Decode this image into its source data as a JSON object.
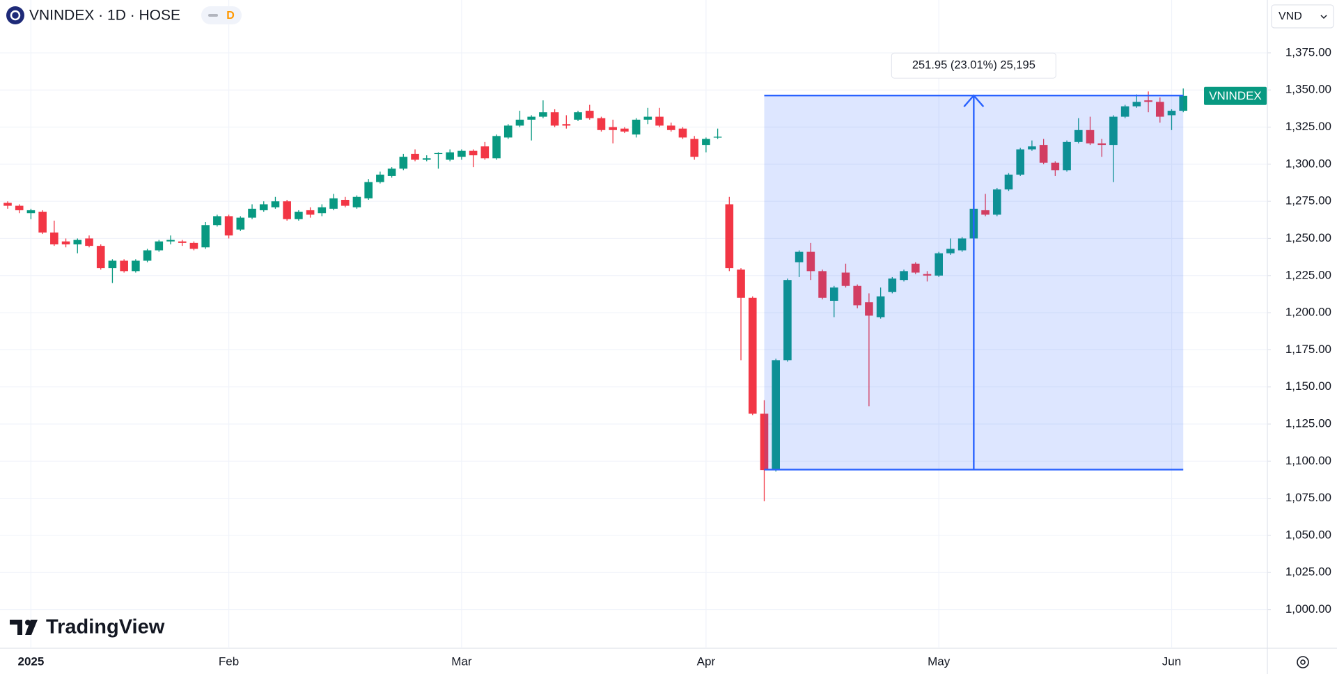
{
  "chart_data": {
    "type": "candlestick",
    "title": "VNINDEX · 1D · HOSE",
    "interval_badge": "D",
    "currency": "VND",
    "brand": "TradingView",
    "price_tag": "VNINDEX",
    "up_color": "#089981",
    "down_color": "#f23645",
    "grid": true,
    "categories": [
      null,
      null,
      "2025",
      null,
      null,
      null,
      null,
      null,
      null,
      null,
      null,
      null,
      null,
      null,
      null,
      null,
      null,
      null,
      null,
      "Feb",
      null,
      null,
      null,
      null,
      null,
      null,
      null,
      null,
      null,
      null,
      null,
      null,
      null,
      null,
      null,
      null,
      null,
      null,
      null,
      "Mar",
      null,
      null,
      null,
      null,
      null,
      null,
      null,
      null,
      null,
      null,
      null,
      null,
      null,
      null,
      null,
      null,
      null,
      null,
      null,
      null,
      "Apr",
      null,
      null,
      null,
      null,
      null,
      null,
      null,
      null,
      null,
      null,
      null,
      null,
      null,
      null,
      null,
      null,
      null,
      null,
      null,
      "May",
      null,
      null,
      null,
      null,
      null,
      null,
      null,
      null,
      null,
      null,
      null,
      null,
      null,
      null,
      null,
      null,
      null,
      null,
      null,
      "Jun",
      null
    ],
    "open": [
      1274,
      1272,
      1267,
      1268,
      1254,
      1248,
      1246,
      1250,
      1245,
      1230,
      1235,
      1228,
      1235,
      1242,
      1248,
      1248,
      1247,
      1244,
      1259,
      1265,
      1256,
      1264,
      1269,
      1271,
      1275,
      1263,
      1269,
      1267,
      1270,
      1276,
      1271,
      1277,
      1288,
      1292,
      1297,
      1307,
      1303,
      1307,
      1303,
      1305,
      1309,
      1312,
      1304,
      1318,
      1326,
      1330,
      1332,
      1335,
      1327,
      1330,
      1336,
      1331,
      1325,
      1324,
      1320,
      1330,
      1332,
      1326,
      1324,
      1317,
      1313,
      1318,
      1273,
      1229,
      1210,
      1132,
      1094,
      1168,
      1234,
      1241,
      1228,
      1208,
      1227,
      1218,
      1207,
      1197,
      1214,
      1222,
      1233,
      1226,
      1225,
      1240,
      1242,
      1250,
      1269,
      1266,
      1283,
      1293,
      1310,
      1313,
      1301,
      1296,
      1315,
      1323,
      1314,
      1313,
      1332,
      1339,
      1343,
      1342,
      1333,
      1336
    ],
    "high": [
      1275,
      1273,
      1270,
      1269,
      1262,
      1250,
      1250,
      1252,
      1246,
      1236,
      1236,
      1236,
      1243,
      1249,
      1252,
      1249,
      1248,
      1261,
      1266,
      1266,
      1265,
      1273,
      1275,
      1278,
      1276,
      1269,
      1271,
      1273,
      1280,
      1278,
      1279,
      1290,
      1295,
      1298,
      1307,
      1310,
      1306,
      1308,
      1310,
      1310,
      1310,
      1315,
      1320,
      1327,
      1336,
      1333,
      1343,
      1337,
      1333,
      1336,
      1340,
      1332,
      1330,
      1325,
      1331,
      1338,
      1338,
      1328,
      1325,
      1319,
      1318,
      1324,
      1278,
      1230,
      1211,
      1141,
      1169,
      1223,
      1242,
      1247,
      1229,
      1218,
      1233,
      1219,
      1213,
      1217,
      1224,
      1229,
      1234,
      1228,
      1241,
      1250,
      1251,
      1271,
      1280,
      1284,
      1294,
      1311,
      1316,
      1317,
      1302,
      1316,
      1331,
      1332,
      1317,
      1333,
      1340,
      1347,
      1349,
      1345,
      1337,
      1351
    ],
    "low": [
      1270,
      1267,
      1263,
      1253,
      1245,
      1244,
      1240,
      1244,
      1229,
      1220,
      1227,
      1227,
      1234,
      1241,
      1246,
      1245,
      1242,
      1243,
      1258,
      1250,
      1255,
      1263,
      1268,
      1270,
      1262,
      1262,
      1264,
      1265,
      1269,
      1271,
      1270,
      1276,
      1287,
      1291,
      1296,
      1302,
      1302,
      1297,
      1302,
      1303,
      1298,
      1303,
      1303,
      1317,
      1325,
      1316,
      1331,
      1325,
      1324,
      1329,
      1330,
      1322,
      1314,
      1321,
      1318,
      1327,
      1325,
      1322,
      1317,
      1303,
      1308,
      1317,
      1228,
      1168,
      1131,
      1073,
      1093,
      1167,
      1224,
      1222,
      1209,
      1197,
      1217,
      1203,
      1137,
      1196,
      1213,
      1221,
      1226,
      1221,
      1224,
      1239,
      1241,
      1249,
      1265,
      1265,
      1282,
      1292,
      1309,
      1300,
      1292,
      1295,
      1314,
      1313,
      1305,
      1288,
      1331,
      1338,
      1335,
      1328,
      1323,
      1335
    ],
    "close": [
      1272,
      1269,
      1269,
      1254,
      1246,
      1246,
      1249,
      1245,
      1230,
      1235,
      1228,
      1235,
      1242,
      1248,
      1249,
      1247,
      1243,
      1259,
      1265,
      1252,
      1264,
      1270,
      1273,
      1275,
      1263,
      1268,
      1266,
      1271,
      1277,
      1272,
      1278,
      1288,
      1293,
      1297,
      1305,
      1303,
      1304,
      1307.5,
      1308,
      1309,
      1306,
      1304,
      1319,
      1326,
      1330,
      1332,
      1335,
      1326,
      1326,
      1335,
      1331,
      1323,
      1323,
      1322,
      1330,
      1332,
      1326,
      1323,
      1318,
      1305,
      1317,
      1318.5,
      1230,
      1210,
      1132,
      1094,
      1168,
      1222,
      1241,
      1228,
      1210,
      1217,
      1218,
      1205,
      1198,
      1211,
      1223,
      1228,
      1227,
      1225,
      1240,
      1243,
      1250,
      1270,
      1266,
      1283,
      1293,
      1310,
      1312,
      1301,
      1296,
      1315,
      1323,
      1314,
      1313,
      1332,
      1339,
      1342,
      1342,
      1332,
      1336,
      1346
    ],
    "ylim": [
      974,
      1410.6
    ],
    "yticks": [
      {
        "value": 1000,
        "label": "1,000.00"
      },
      {
        "value": 1025,
        "label": "1,025.00"
      },
      {
        "value": 1050,
        "label": "1,050.00"
      },
      {
        "value": 1075,
        "label": "1,075.00"
      },
      {
        "value": 1100,
        "label": "1,100.00"
      },
      {
        "value": 1125,
        "label": "1,125.00"
      },
      {
        "value": 1150,
        "label": "1,150.00"
      },
      {
        "value": 1175,
        "label": "1,175.00"
      },
      {
        "value": 1200,
        "label": "1,200.00"
      },
      {
        "value": 1225,
        "label": "1,225.00"
      },
      {
        "value": 1250,
        "label": "1,250.00"
      },
      {
        "value": 1275,
        "label": "1,275.00"
      },
      {
        "value": 1300,
        "label": "1,300.00"
      },
      {
        "value": 1325,
        "label": "1,325.00"
      },
      {
        "value": 1350,
        "label": "1,350.00"
      },
      {
        "value": 1375,
        "label": "1,375.00"
      }
    ],
    "measure": {
      "label": "251.95 (23.01%) 25,195",
      "start_index": 65,
      "end_index": 101,
      "low": 1094.3,
      "high": 1346.25
    }
  }
}
